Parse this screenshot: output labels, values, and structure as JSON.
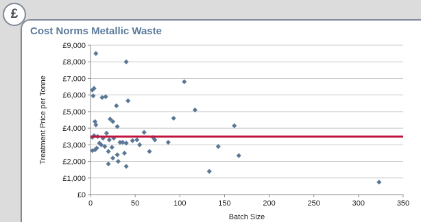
{
  "badge": {
    "symbol": "£",
    "icon": "pound-icon"
  },
  "chart_data": {
    "type": "scatter",
    "title": "Cost Norms Metallic Waste",
    "xlabel": "Batch Size",
    "ylabel": "Treatment Price per Tonne",
    "xlim": [
      0,
      350
    ],
    "ylim": [
      0,
      9000
    ],
    "x_ticks": [
      0,
      50,
      100,
      150,
      200,
      250,
      300,
      350
    ],
    "y_ticks": [
      0,
      1000,
      2000,
      3000,
      4000,
      5000,
      6000,
      7000,
      8000,
      9000
    ],
    "y_tick_labels": [
      "£0",
      "£1,000",
      "£2,000",
      "£3,000",
      "£4,000",
      "£5,000",
      "£6,000",
      "£7,000",
      "£8,000",
      "£9,000"
    ],
    "grid": "horizontal",
    "marker_color": "#5a7896",
    "reference_line": {
      "y": 3500,
      "color": "#c0143c"
    },
    "points": [
      {
        "x": 6,
        "y": 8500
      },
      {
        "x": 40,
        "y": 8000
      },
      {
        "x": 105,
        "y": 6800
      },
      {
        "x": 4,
        "y": 6400
      },
      {
        "x": 2,
        "y": 6300
      },
      {
        "x": 3,
        "y": 5950
      },
      {
        "x": 13,
        "y": 5850
      },
      {
        "x": 17,
        "y": 5900
      },
      {
        "x": 42,
        "y": 5650
      },
      {
        "x": 29,
        "y": 5350
      },
      {
        "x": 117,
        "y": 5100
      },
      {
        "x": 93,
        "y": 4600
      },
      {
        "x": 22,
        "y": 4550
      },
      {
        "x": 25,
        "y": 4400
      },
      {
        "x": 5,
        "y": 4400
      },
      {
        "x": 6,
        "y": 4200
      },
      {
        "x": 30,
        "y": 4100
      },
      {
        "x": 161,
        "y": 4150
      },
      {
        "x": 60,
        "y": 3750
      },
      {
        "x": 18,
        "y": 3700
      },
      {
        "x": 2,
        "y": 3450
      },
      {
        "x": 4,
        "y": 3550
      },
      {
        "x": 8,
        "y": 3500
      },
      {
        "x": 14,
        "y": 3400
      },
      {
        "x": 21,
        "y": 3300
      },
      {
        "x": 26,
        "y": 3400
      },
      {
        "x": 70,
        "y": 3450
      },
      {
        "x": 72,
        "y": 3300
      },
      {
        "x": 47,
        "y": 3250
      },
      {
        "x": 52,
        "y": 3300
      },
      {
        "x": 36,
        "y": 3150
      },
      {
        "x": 33,
        "y": 3150
      },
      {
        "x": 40,
        "y": 3100
      },
      {
        "x": 55,
        "y": 3000
      },
      {
        "x": 87,
        "y": 3150
      },
      {
        "x": 143,
        "y": 2900
      },
      {
        "x": 10,
        "y": 3100
      },
      {
        "x": 12,
        "y": 3000
      },
      {
        "x": 16,
        "y": 2900
      },
      {
        "x": 24,
        "y": 2850
      },
      {
        "x": 5,
        "y": 2700
      },
      {
        "x": 7,
        "y": 2800
      },
      {
        "x": 2,
        "y": 2650
      },
      {
        "x": 20,
        "y": 2600
      },
      {
        "x": 66,
        "y": 2600
      },
      {
        "x": 30,
        "y": 2400
      },
      {
        "x": 38,
        "y": 2500
      },
      {
        "x": 25,
        "y": 2200
      },
      {
        "x": 166,
        "y": 2350
      },
      {
        "x": 20,
        "y": 1850
      },
      {
        "x": 31,
        "y": 2000
      },
      {
        "x": 40,
        "y": 1700
      },
      {
        "x": 133,
        "y": 1400
      },
      {
        "x": 323,
        "y": 750
      }
    ]
  }
}
